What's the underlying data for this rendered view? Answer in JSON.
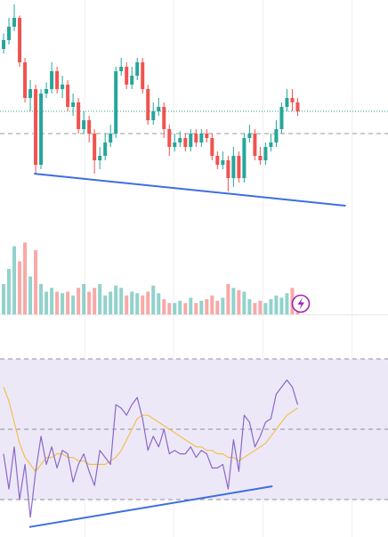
{
  "chart_data": {
    "type": "candlestick",
    "up_color": "#26a69a",
    "down_color": "#ef5350",
    "open": [
      78,
      82,
      88,
      92,
      72,
      56,
      60,
      26,
      58,
      60,
      68,
      60,
      62,
      52,
      54,
      42,
      46,
      40,
      28,
      30,
      36,
      40,
      68,
      70,
      62,
      66,
      72,
      60,
      46,
      50,
      52,
      42,
      34,
      36,
      38,
      34,
      40,
      36,
      40,
      38,
      30,
      26,
      28,
      20,
      30,
      20,
      38,
      40,
      30,
      28,
      34,
      36,
      42,
      52,
      56,
      54
    ],
    "high": [
      85,
      92,
      98,
      93,
      74,
      64,
      62,
      60,
      63,
      72,
      70,
      66,
      64,
      58,
      56,
      50,
      48,
      42,
      34,
      40,
      44,
      70,
      74,
      72,
      70,
      74,
      74,
      62,
      54,
      56,
      54,
      44,
      40,
      41,
      40,
      42,
      42,
      42,
      42,
      40,
      32,
      32,
      30,
      34,
      32,
      40,
      44,
      42,
      34,
      36,
      40,
      46,
      54,
      60,
      60,
      56
    ],
    "low": [
      76,
      80,
      86,
      70,
      54,
      50,
      22,
      24,
      56,
      58,
      58,
      56,
      50,
      48,
      40,
      40,
      36,
      22,
      24,
      28,
      34,
      38,
      66,
      60,
      60,
      64,
      58,
      44,
      44,
      48,
      38,
      30,
      32,
      34,
      32,
      32,
      34,
      34,
      36,
      28,
      24,
      24,
      14,
      16,
      18,
      18,
      36,
      28,
      26,
      26,
      32,
      34,
      40,
      50,
      50,
      48
    ],
    "close": [
      82,
      88,
      92,
      72,
      56,
      60,
      26,
      58,
      60,
      68,
      60,
      62,
      52,
      54,
      42,
      46,
      40,
      28,
      30,
      36,
      40,
      68,
      70,
      62,
      66,
      72,
      60,
      46,
      50,
      52,
      42,
      34,
      36,
      38,
      34,
      40,
      36,
      40,
      38,
      30,
      26,
      28,
      20,
      30,
      20,
      38,
      40,
      30,
      28,
      34,
      36,
      42,
      52,
      56,
      54,
      50
    ],
    "ylim": [
      0,
      100
    ],
    "xlim": [
      -0.67,
      71.9
    ],
    "xgrid": [
      15.2,
      31.8,
      48.5,
      65.2
    ],
    "reference_line": 40,
    "trendline": {
      "color": "#3d6fe0",
      "start": [
        5.7,
        22
      ],
      "end": [
        64,
        7.6
      ]
    },
    "volume": {
      "values": [
        40,
        60,
        90,
        70,
        95,
        50,
        85,
        40,
        30,
        35,
        30,
        28,
        30,
        25,
        35,
        40,
        30,
        35,
        40,
        25,
        30,
        38,
        35,
        25,
        30,
        28,
        25,
        30,
        38,
        28,
        20,
        15,
        15,
        18,
        15,
        22,
        15,
        18,
        20,
        25,
        18,
        22,
        40,
        35,
        32,
        30,
        20,
        15,
        18,
        15,
        20,
        25,
        22,
        28,
        35,
        25
      ],
      "ylim": [
        0,
        100
      ]
    },
    "rsi": {
      "color": "#8a68c8",
      "values": [
        43,
        33,
        45,
        30,
        40,
        25,
        38,
        48,
        40,
        45,
        39,
        44,
        43,
        35,
        40,
        43,
        38,
        34,
        44,
        42,
        40,
        57,
        56,
        54,
        57,
        59,
        53,
        44,
        48,
        45,
        50,
        43,
        44,
        43,
        43,
        45,
        42,
        44,
        43,
        39,
        39,
        40,
        33,
        47,
        38,
        54,
        52,
        45,
        48,
        52,
        53,
        60,
        62,
        64,
        62,
        57
      ],
      "ma_color": "#f2c14e",
      "ma": [
        62,
        58,
        52,
        46,
        42,
        40,
        38,
        40,
        42,
        42,
        43,
        43,
        42,
        42,
        41,
        41,
        40,
        40,
        40,
        40,
        41,
        42,
        44,
        47,
        50,
        53,
        54,
        54,
        53,
        52,
        51,
        50,
        49,
        48,
        47,
        46,
        45,
        45,
        44,
        44,
        43,
        43,
        42,
        42,
        41,
        42,
        43,
        44,
        45,
        46,
        48,
        50,
        52,
        54,
        55,
        56
      ],
      "ylim": [
        20,
        80
      ],
      "band": [
        30,
        70
      ],
      "yticks": [
        30,
        50,
        70
      ],
      "band_color": "#ede8f8",
      "trendline": {
        "color": "#3d6fe0",
        "start": [
          4.8,
          22.2
        ],
        "end": [
          50.3,
          33.8
        ]
      }
    }
  }
}
